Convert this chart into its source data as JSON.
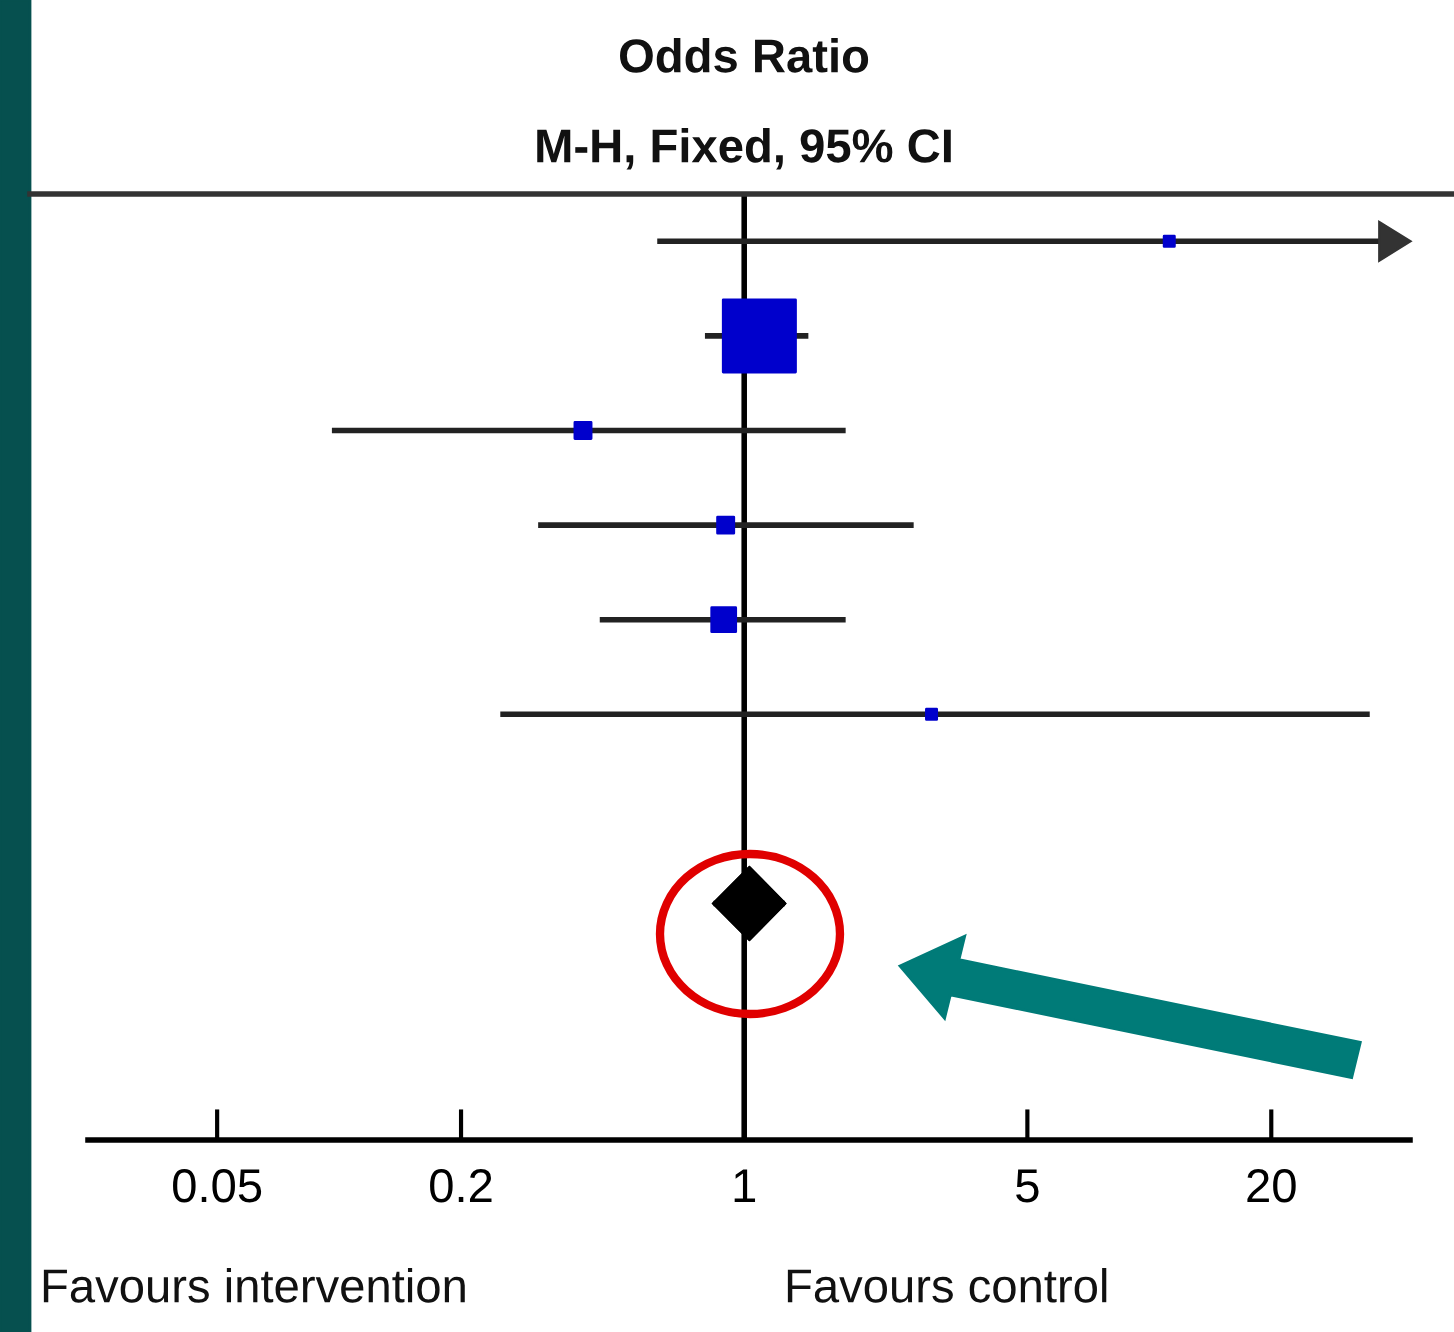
{
  "chart_data": {
    "type": "bubble",
    "title": "Odds Ratio",
    "subtitle": "M-H, Fixed, 95% CI",
    "orientation": "horizontal",
    "categories": [
      null,
      null,
      null,
      null,
      null,
      null,
      null,
      null,
      null,
      null
    ],
    "series": [
      {
        "color": "#0000cc",
        "marker": "square",
        "values": [
          11.2,
          1.09,
          0.4,
          0.9,
          0.89,
          2.9,
          null,
          null,
          null,
          null
        ],
        "sizes": [
          0.02,
          1,
          0.05,
          0.05,
          0.11,
          0.02,
          null,
          null,
          null,
          null
        ],
        "errors": [
          [
            0.61,
            37
          ],
          [
            0.8,
            1.44
          ],
          [
            0.096,
            1.78
          ],
          [
            0.31,
            2.62
          ],
          [
            0.44,
            1.78
          ],
          [
            0.25,
            35
          ],
          null,
          null,
          null,
          null
        ]
      },
      {
        "type": "scatter",
        "color": "#000000",
        "marker": "diamond",
        "values": [
          null,
          null,
          null,
          null,
          null,
          null,
          null,
          1.03,
          null,
          null
        ],
        "errors": [
          null,
          null,
          null,
          null,
          null,
          null,
          null,
          [
            0.84,
            1.26
          ],
          null,
          null
        ]
      }
    ],
    "log": "x",
    "xlim": [
      0.024,
      44
    ],
    "xticks": [
      0.05,
      0.2,
      1,
      5,
      20
    ],
    "ref_lines": [
      {
        "axis": "x",
        "value": 1,
        "color": "#000000"
      }
    ],
    "annotations": [
      "Favours intervention",
      "Favours control"
    ],
    "grid": false,
    "legend": false,
    "tick_labels": "x"
  }
}
